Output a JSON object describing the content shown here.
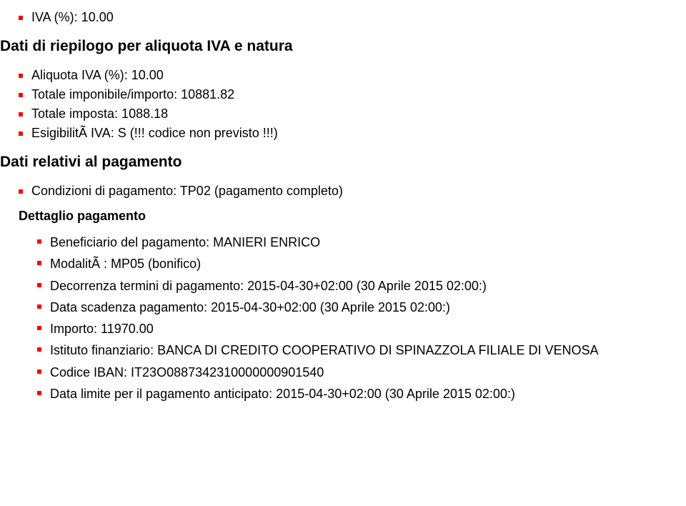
{
  "top": {
    "iva_percent": "IVA (%): 10.00"
  },
  "riepilogo": {
    "heading": "Dati di riepilogo per aliquota IVA e natura",
    "items": [
      "Aliquota IVA (%): 10.00",
      "Totale imponibile/importo: 10881.82",
      "Totale imposta: 1088.18",
      "EsigibilitÃ  IVA: S (!!! codice non previsto !!!)"
    ]
  },
  "pagamento": {
    "heading": "Dati relativi al pagamento",
    "condizioni": "Condizioni di pagamento: TP02 (pagamento completo)",
    "dettaglio_heading": "Dettaglio pagamento",
    "dettaglio": [
      "Beneficiario del pagamento: MANIERI ENRICO",
      "ModalitÃ : MP05 (bonifico)",
      "Decorrenza termini di pagamento: 2015-04-30+02:00 (30 Aprile 2015 02:00:)",
      "Data scadenza pagamento: 2015-04-30+02:00 (30 Aprile 2015 02:00:)",
      "Importo: 11970.00",
      "Istituto finanziario: BANCA DI CREDITO COOPERATIVO DI SPINAZZOLA FILIALE DI VENOSA",
      "Codice IBAN: IT23O0887342310000000901540",
      "Data limite per il pagamento anticipato: 2015-04-30+02:00 (30 Aprile 2015 02:00:)"
    ]
  }
}
